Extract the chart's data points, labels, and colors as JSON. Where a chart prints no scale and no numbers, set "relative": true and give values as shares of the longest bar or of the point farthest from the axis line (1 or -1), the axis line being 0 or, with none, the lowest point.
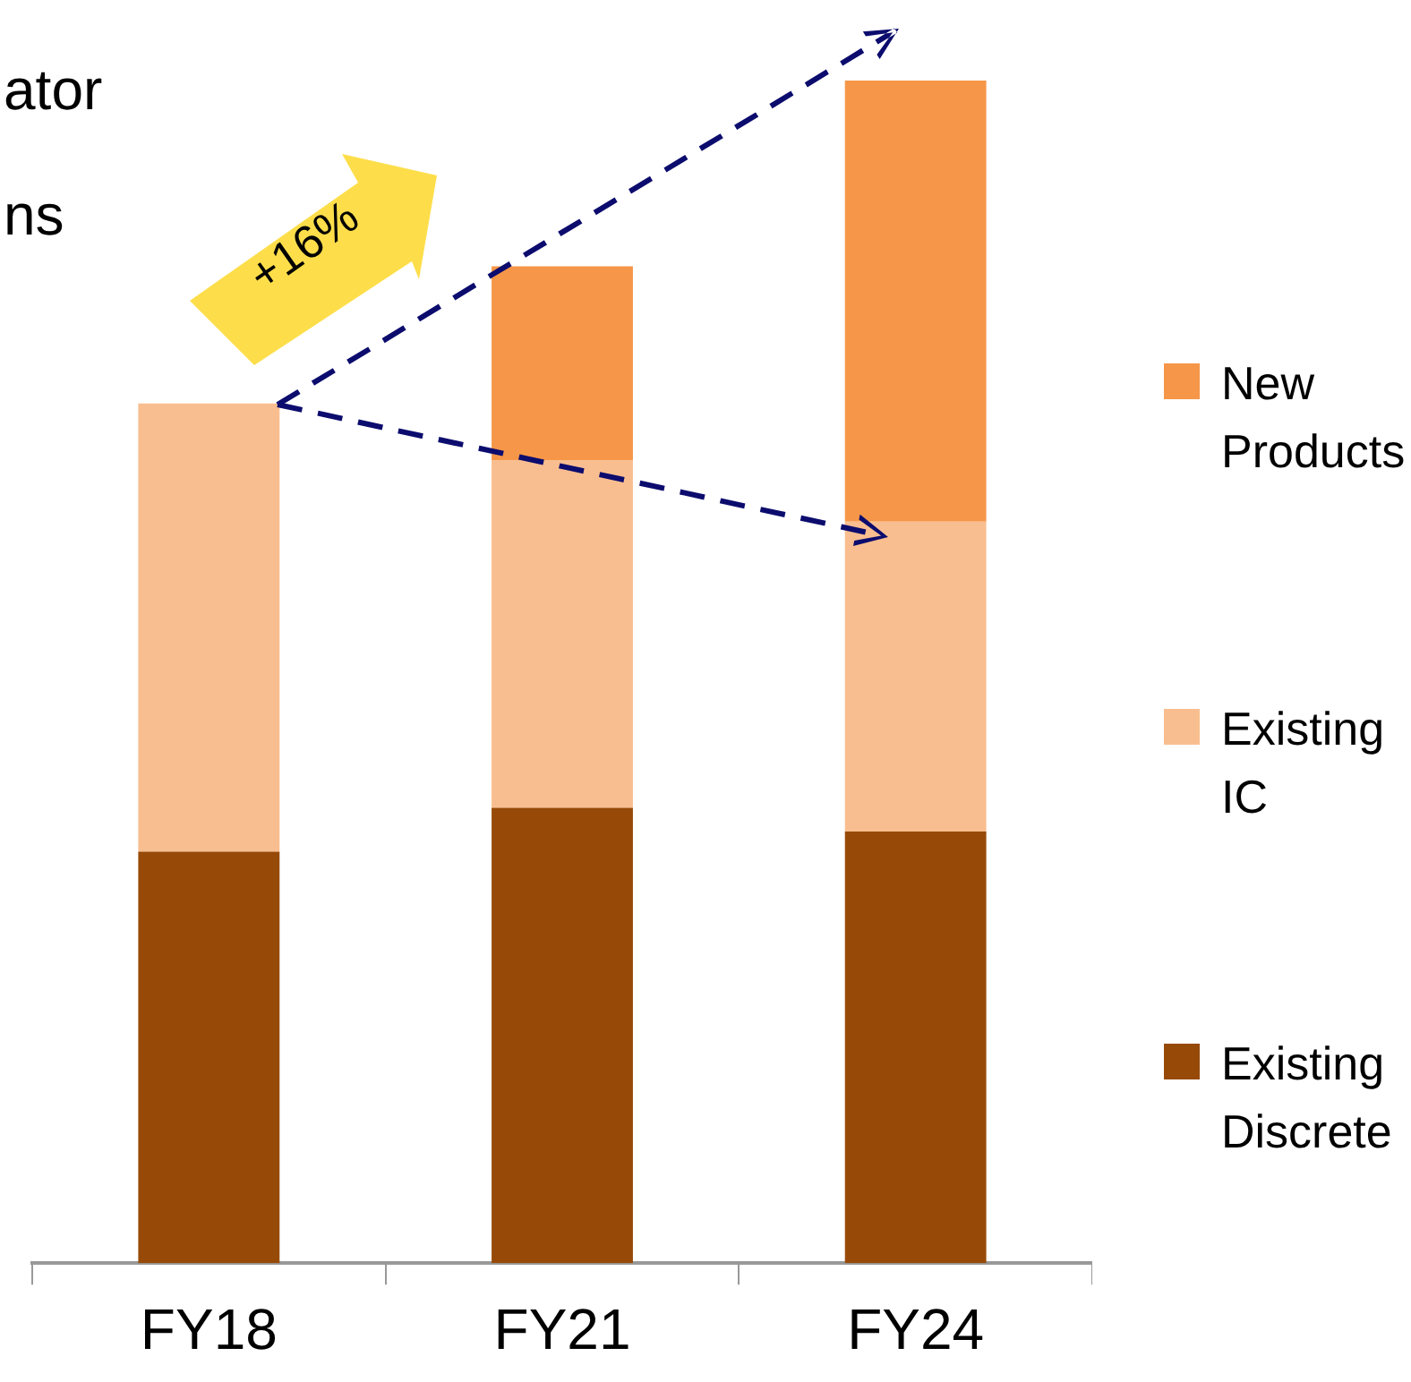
{
  "chart_data": {
    "type": "bar",
    "stacked": true,
    "relative": true,
    "categories": [
      "FY18",
      "FY21",
      "FY24"
    ],
    "series": [
      {
        "name": "Existing Discrete",
        "color": "#974a07",
        "values": [
          0.348,
          0.385,
          0.365
        ]
      },
      {
        "name": "Existing IC",
        "color": "#f9be8f",
        "values": [
          0.379,
          0.294,
          0.262
        ]
      },
      {
        "name": "New Products",
        "color": "#f69648",
        "values": [
          0,
          0.164,
          0.373
        ]
      }
    ],
    "legend": "right",
    "grid": false,
    "annotations": [
      "ator",
      "ns",
      "+16%"
    ]
  }
}
